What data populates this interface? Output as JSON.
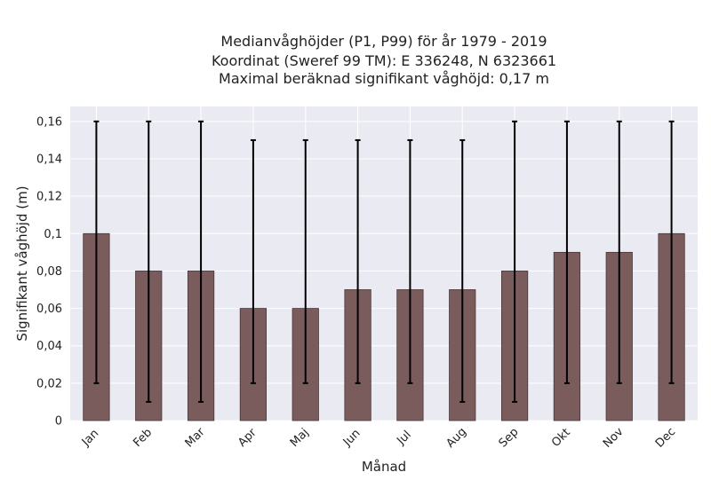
{
  "chart_data": {
    "type": "bar",
    "title_lines": [
      "Medianvåghöjder (P1, P99) för år 1979 - 2019",
      "Koordinat (Sweref 99 TM): E 336248, N 6323661",
      "Maximal beräknad signifikant våghöjd: 0,17 m"
    ],
    "xlabel": "Månad",
    "ylabel": "Signifikant våghöjd (m)",
    "categories": [
      "Jan",
      "Feb",
      "Mar",
      "Apr",
      "Maj",
      "Jun",
      "Jul",
      "Aug",
      "Sep",
      "Okt",
      "Nov",
      "Dec"
    ],
    "values": [
      0.1,
      0.08,
      0.08,
      0.06,
      0.06,
      0.07,
      0.07,
      0.07,
      0.08,
      0.09,
      0.09,
      0.1
    ],
    "p1": [
      0.02,
      0.01,
      0.01,
      0.02,
      0.02,
      0.02,
      0.02,
      0.01,
      0.01,
      0.02,
      0.02,
      0.02
    ],
    "p99": [
      0.16,
      0.16,
      0.16,
      0.15,
      0.15,
      0.15,
      0.15,
      0.15,
      0.16,
      0.16,
      0.16,
      0.16
    ],
    "ylim": [
      0,
      0.168
    ],
    "yticks": [
      0,
      0.02,
      0.04,
      0.06,
      0.08,
      0.1,
      0.12,
      0.14,
      0.16
    ],
    "ytick_labels": [
      "0",
      "0,02",
      "0,04",
      "0,06",
      "0,08",
      "0,1",
      "0,12",
      "0,14",
      "0,16"
    ],
    "grid": true,
    "colors": {
      "bar": "#7b5c5c",
      "bar_edge": "#4a3535",
      "error_bar": "#000000",
      "plot_background": "#eaeaf2",
      "grid": "#ffffff"
    }
  }
}
